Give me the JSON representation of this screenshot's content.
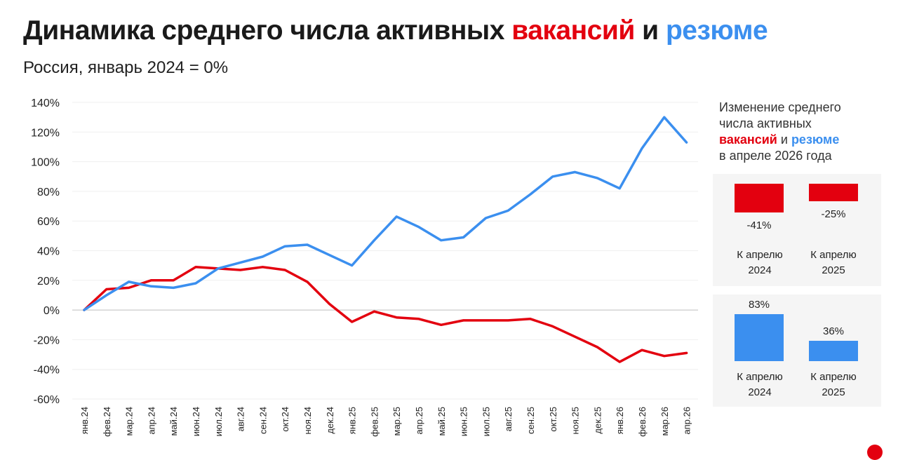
{
  "title": {
    "prefix": "Динамика среднего числа активных ",
    "vacancies": "вакансий",
    "and": " и ",
    "resumes": "резюме"
  },
  "subtitle": "Россия, январь 2024 = 0%",
  "colors": {
    "vacancies": "#e3000f",
    "resumes": "#3b8fef",
    "panel_bg": "#f5f5f5"
  },
  "chart_data": [
    {
      "type": "line",
      "categories": [
        "янв.24",
        "фев.24",
        "мар.24",
        "апр.24",
        "май.24",
        "июн.24",
        "июл.24",
        "авг.24",
        "сен.24",
        "окт.24",
        "ноя.24",
        "дек.24",
        "янв.25",
        "фев.25",
        "мар.25",
        "апр.25",
        "май.25",
        "июн.25",
        "июл.25",
        "авг.25",
        "сен.25",
        "окт.25",
        "ноя.25",
        "дек.25",
        "янв.26",
        "фев.26",
        "мар.26",
        "апр.26"
      ],
      "y_tick_labels": [
        "140%",
        "120%",
        "100%",
        "80%",
        "60%",
        "40%",
        "20%",
        "0%",
        "-20%",
        "-40%",
        "-60%"
      ],
      "ylim": [
        -60,
        140
      ],
      "y_ticks": [
        140,
        120,
        100,
        80,
        60,
        40,
        20,
        0,
        -20,
        -40,
        -60
      ],
      "grid": true,
      "series": [
        {
          "name": "вакансий",
          "color": "#e3000f",
          "values": [
            0,
            14,
            15,
            20,
            20,
            29,
            28,
            27,
            29,
            27,
            19,
            4,
            -8,
            -1,
            -5,
            -6,
            -10,
            -7,
            -7,
            -7,
            -6,
            -11,
            -18,
            -25,
            -35,
            -27,
            -31,
            -29
          ]
        },
        {
          "name": "резюме",
          "color": "#3b8fef",
          "values": [
            0,
            10,
            19,
            16,
            15,
            18,
            28,
            32,
            36,
            43,
            44,
            37,
            30,
            47,
            63,
            56,
            47,
            49,
            62,
            67,
            78,
            90,
            93,
            89,
            82,
            109,
            130,
            113
          ]
        }
      ]
    },
    {
      "type": "bar",
      "series_name": "вакансий",
      "categories": [
        "К апрелю 2024",
        "К апрелю 2025"
      ],
      "values": [
        -41,
        -25
      ],
      "value_labels": [
        "-41%",
        "-25%"
      ],
      "color": "#e3000f"
    },
    {
      "type": "bar",
      "series_name": "резюме",
      "categories": [
        "К апрелю 2024",
        "К апрелю 2025"
      ],
      "values": [
        83,
        36
      ],
      "value_labels": [
        "83%",
        "36%"
      ],
      "color": "#3b8fef"
    }
  ],
  "panel": {
    "heading_line1": "Изменение среднего",
    "heading_line2": "числа активных",
    "vacancies": "вакансий",
    "and": " и ",
    "resumes": "резюме",
    "heading_line4": "в апреле 2026 года",
    "cat_line1": "К апрелю",
    "cat_2024": "2024",
    "cat_2025": "2025"
  }
}
